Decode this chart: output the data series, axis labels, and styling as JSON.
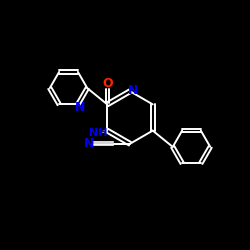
{
  "background_color": "#000000",
  "bond_color": "#ffffff",
  "atom_colors": {
    "N": "#0000ee",
    "O": "#ff2200",
    "C": "#ffffff"
  },
  "figsize": [
    2.5,
    2.5
  ],
  "dpi": 100
}
